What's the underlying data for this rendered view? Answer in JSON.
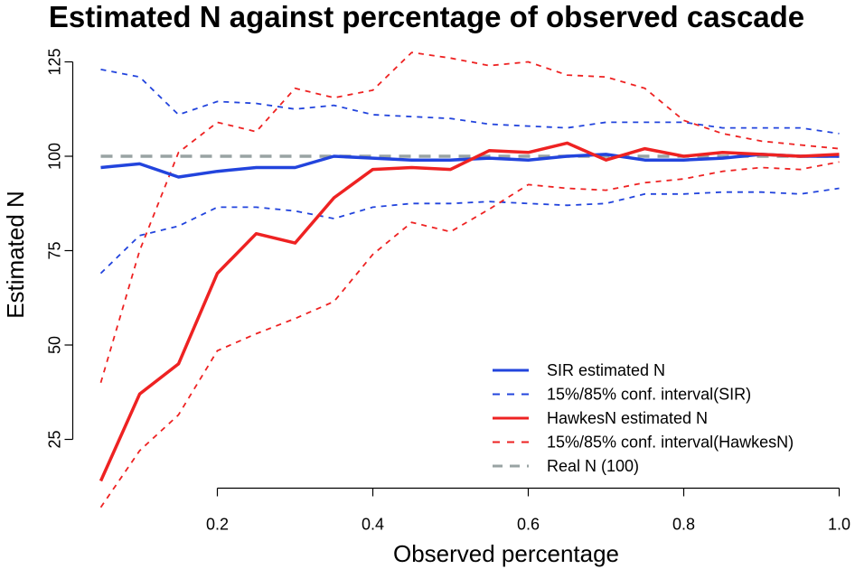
{
  "chart_data": {
    "type": "line",
    "title": "Estimated N against percentage of observed cascade",
    "xlabel": "Observed percentage",
    "ylabel": "Estimated N",
    "xlim": [
      0.05,
      1.0
    ],
    "ylim": [
      5,
      130
    ],
    "xticks": [
      0.2,
      0.4,
      0.6,
      0.8,
      1.0
    ],
    "xtick_labels": [
      "0.2",
      "0.4",
      "0.6",
      "0.8",
      "1.0"
    ],
    "yticks": [
      25,
      50,
      75,
      100,
      125
    ],
    "ytick_labels": [
      "25",
      "50",
      "75",
      "100",
      "125"
    ],
    "legend_position": "bottom-right",
    "grid": false,
    "x": [
      0.05,
      0.1,
      0.15,
      0.2,
      0.25,
      0.3,
      0.35,
      0.4,
      0.45,
      0.5,
      0.55,
      0.6,
      0.65,
      0.7,
      0.75,
      0.8,
      0.85,
      0.9,
      0.95,
      1.0
    ],
    "series": [
      {
        "name": "SIR estimated N",
        "color": "#2244dd",
        "style": "solid",
        "values": [
          97,
          98,
          94.5,
          96,
          97,
          97,
          100,
          99.5,
          99,
          99,
          99.5,
          99,
          100,
          100.5,
          99,
          99,
          99.5,
          100.5,
          100,
          100
        ]
      },
      {
        "name": "15%/85% conf. interval(SIR)",
        "color": "#2244dd",
        "style": "dashed",
        "values": [
          123,
          121,
          111,
          114.5,
          114,
          112.5,
          113.5,
          111,
          110.5,
          110,
          108.5,
          108,
          107.5,
          109,
          109,
          109,
          107.5,
          107.5,
          107.5,
          106
        ]
      },
      {
        "name": "15%/85% conf. interval(SIR)",
        "color": "#2244dd",
        "style": "dashed",
        "values": [
          69,
          79,
          81.5,
          86.5,
          86.5,
          85.5,
          83.5,
          86.5,
          87.5,
          87.5,
          88,
          87.5,
          87,
          87.5,
          90,
          90,
          90.5,
          90.5,
          90,
          91.5
        ]
      },
      {
        "name": "HawkesN estimated N",
        "color": "#ee2222",
        "style": "solid",
        "values": [
          14,
          37,
          45,
          69,
          79.5,
          77,
          89,
          96.5,
          97,
          96.5,
          101.5,
          101,
          103.5,
          99,
          102,
          100,
          101,
          100.5,
          100,
          100.5
        ]
      },
      {
        "name": "15%/85% conf. interval(HawkesN)",
        "color": "#ee2222",
        "style": "dashed",
        "values": [
          40,
          75,
          101,
          109,
          106.5,
          118,
          115.5,
          117.5,
          127.5,
          126,
          124,
          125,
          121.5,
          121,
          118,
          109.5,
          106,
          104,
          103,
          102
        ]
      },
      {
        "name": "15%/85% conf. interval(HawkesN)",
        "color": "#ee2222",
        "style": "dashed",
        "values": [
          7,
          22,
          31.5,
          48.5,
          53,
          57,
          61.5,
          74,
          82.5,
          80,
          86,
          92.5,
          91.5,
          91,
          93,
          94,
          96,
          97,
          96.5,
          98.5
        ]
      },
      {
        "name": "Real N (100)",
        "color": "#99a3a3",
        "style": "dashed",
        "values": [
          100,
          100,
          100,
          100,
          100,
          100,
          100,
          100,
          100,
          100,
          100,
          100,
          100,
          100,
          100,
          100,
          100,
          100,
          100,
          100
        ]
      }
    ],
    "legend": [
      {
        "label": "SIR estimated N",
        "color": "#2244dd",
        "style": "solid"
      },
      {
        "label": "15%/85% conf. interval(SIR)",
        "color": "#2244dd",
        "style": "dashed"
      },
      {
        "label": "HawkesN estimated N",
        "color": "#ee2222",
        "style": "solid"
      },
      {
        "label": "15%/85% conf. interval(HawkesN)",
        "color": "#ee2222",
        "style": "dashed"
      },
      {
        "label": "Real N (100)",
        "color": "#99a3a3",
        "style": "dashed"
      }
    ]
  }
}
